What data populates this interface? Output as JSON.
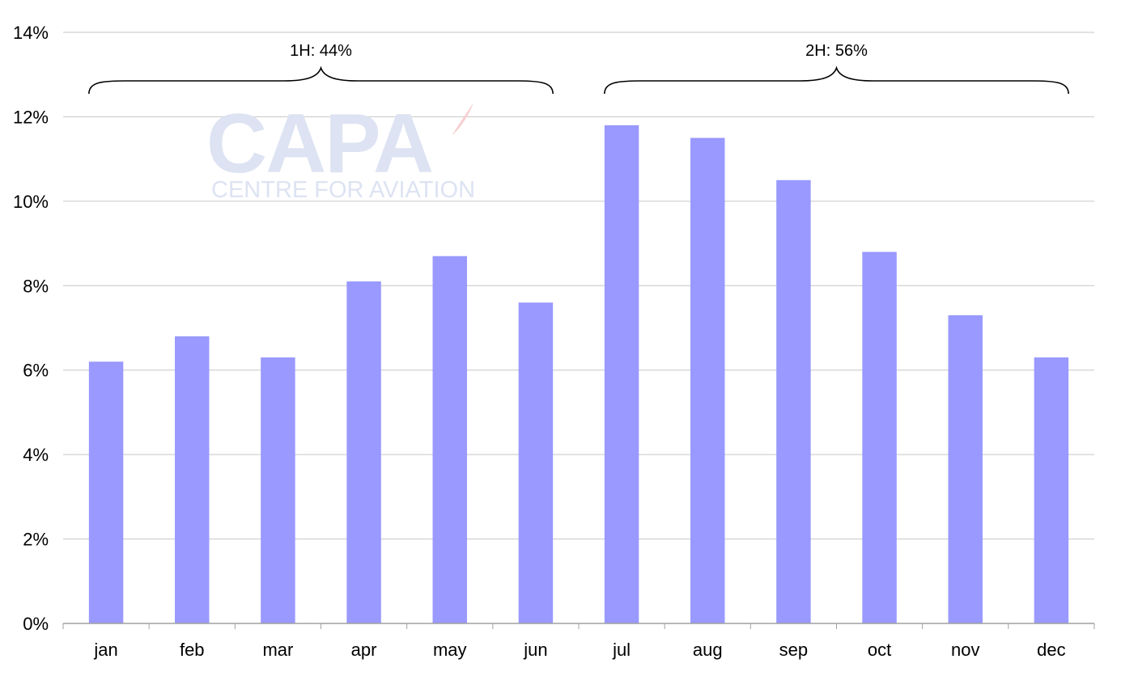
{
  "chart_data": {
    "type": "bar",
    "title": "",
    "xlabel": "",
    "ylabel": "",
    "categories": [
      "jan",
      "feb",
      "mar",
      "apr",
      "may",
      "jun",
      "jul",
      "aug",
      "sep",
      "oct",
      "nov",
      "dec"
    ],
    "series": [
      {
        "values": [
          6.2,
          6.8,
          6.3,
          8.1,
          8.7,
          7.6,
          11.8,
          11.5,
          10.5,
          8.8,
          7.3,
          6.3
        ]
      }
    ],
    "ylim": [
      0,
      14
    ],
    "yticks": [
      "0%",
      "2%",
      "4%",
      "6%",
      "8%",
      "10%",
      "12%",
      "14%"
    ],
    "grid": true,
    "legend": "none",
    "bar_color": "#9999ff",
    "annotations": [
      {
        "label": "1H: 44%",
        "from": "jan",
        "to": "jun"
      },
      {
        "label": "2H: 56%",
        "from": "jul",
        "to": "dec"
      }
    ]
  },
  "watermark": {
    "logo": "CAPA",
    "tagline": "CENTRE FOR AVIATION",
    "color": "#dde3f2",
    "accent": "#f7cfd2"
  }
}
